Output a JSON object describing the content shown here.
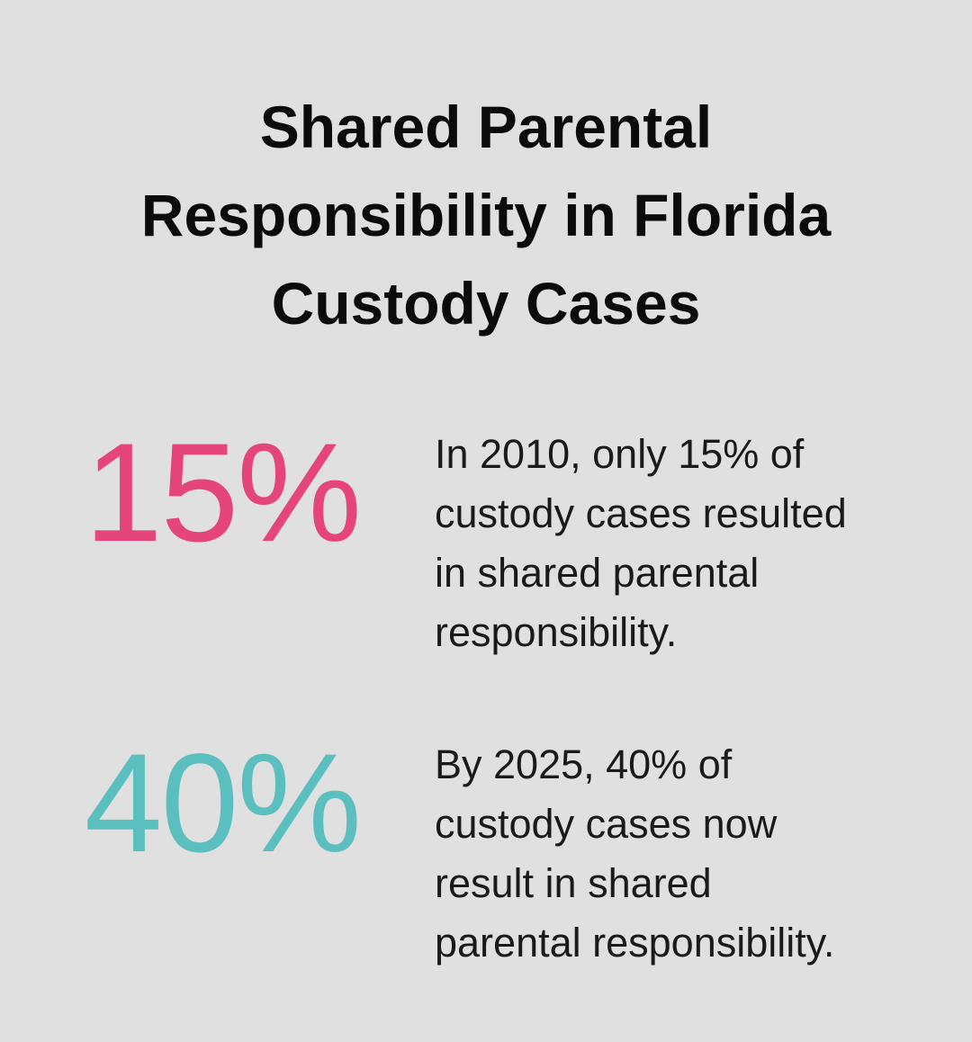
{
  "title": {
    "lines": [
      "Shared Parental",
      "Responsibility in Florida",
      "Custody Cases"
    ]
  },
  "stats": [
    {
      "value": "15%",
      "color": "#e5457a",
      "lines": [
        "In 2010, only 15% of",
        "custody cases resulted",
        "in shared parental",
        "responsibility."
      ]
    },
    {
      "value": "40%",
      "color": "#5bbfc0",
      "lines": [
        "By 2025, 40% of",
        "custody cases now",
        "result in shared",
        "parental responsibility."
      ]
    }
  ]
}
